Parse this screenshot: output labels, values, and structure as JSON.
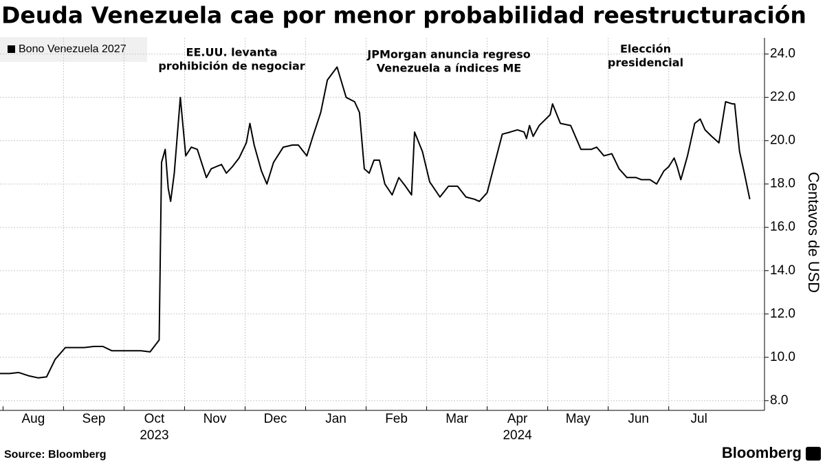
{
  "chart_data": {
    "type": "line",
    "title": "Deuda Venezuela cae por menor probabilidad reestructuración",
    "y_axis_label": "Centavos de USD",
    "source": "Source:  Bloomberg",
    "brand": "Bloomberg",
    "legend_position": "top-left",
    "grid": true,
    "years": [
      "2023",
      "2024"
    ],
    "annotations": [
      [
        "EE.UU. levanta",
        "prohibición de negociar"
      ],
      [
        "JPMorgan anuncia regreso",
        "Venezuela a índices ME"
      ],
      [
        "Elección",
        "presidencial"
      ]
    ],
    "xlim": [
      -0.05,
      12.56
    ],
    "xticks": [
      {
        "value": 0,
        "label": "Aug"
      },
      {
        "value": 1,
        "label": "Sep"
      },
      {
        "value": 2,
        "label": "Oct"
      },
      {
        "value": 3,
        "label": "Nov"
      },
      {
        "value": 4,
        "label": "Dec"
      },
      {
        "value": 5,
        "label": "Jan"
      },
      {
        "value": 6,
        "label": "Feb"
      },
      {
        "value": 7,
        "label": "Mar"
      },
      {
        "value": 8,
        "label": "Apr"
      },
      {
        "value": 9,
        "label": "May"
      },
      {
        "value": 10,
        "label": "Jun"
      },
      {
        "value": 11,
        "label": "Jul"
      }
    ],
    "ylim": [
      7.55,
      24.75
    ],
    "yticks": [
      {
        "value": 8,
        "label": "8.0"
      },
      {
        "value": 10,
        "label": "10.0"
      },
      {
        "value": 12,
        "label": "12.0"
      },
      {
        "value": 14,
        "label": "14.0"
      },
      {
        "value": 16,
        "label": "16.0"
      },
      {
        "value": 18,
        "label": "18.0"
      },
      {
        "value": 20,
        "label": "20.0"
      },
      {
        "value": 22,
        "label": "22.0"
      },
      {
        "value": 24,
        "label": "24.0"
      }
    ],
    "x": [
      -0.05,
      0.11,
      0.26,
      0.42,
      0.58,
      0.72,
      0.86,
      1.03,
      1.19,
      1.34,
      1.5,
      1.65,
      1.8,
      1.96,
      2.12,
      2.28,
      2.43,
      2.58,
      2.62,
      2.68,
      2.73,
      2.77,
      2.83,
      2.93,
      3.02,
      3.11,
      3.21,
      3.36,
      3.44,
      3.52,
      3.61,
      3.69,
      3.79,
      3.9,
      4.02,
      4.08,
      4.15,
      4.27,
      4.36,
      4.47,
      4.63,
      4.78,
      4.88,
      5.02,
      5.12,
      5.25,
      5.36,
      5.52,
      5.67,
      5.81,
      5.89,
      5.97,
      6.05,
      6.13,
      6.22,
      6.31,
      6.43,
      6.54,
      6.65,
      6.75,
      6.8,
      6.93,
      7.05,
      7.22,
      7.36,
      7.51,
      7.65,
      7.79,
      7.87,
      8.0,
      8.11,
      8.25,
      8.38,
      8.5,
      8.61,
      8.65,
      8.7,
      8.76,
      8.86,
      9.04,
      9.08,
      9.21,
      9.38,
      9.55,
      9.72,
      9.81,
      9.93,
      10.06,
      10.18,
      10.31,
      10.46,
      10.55,
      10.69,
      10.8,
      10.92,
      11.0,
      11.09,
      11.14,
      11.2,
      11.31,
      11.43,
      11.52,
      11.6,
      11.71,
      11.83,
      11.94,
      12.05,
      12.09,
      12.17,
      12.25,
      12.34
    ],
    "series": [
      {
        "name": "Bono Venezuela 2027",
        "color": "#000000",
        "values": [
          9.25,
          9.25,
          9.3,
          9.15,
          9.05,
          9.1,
          9.9,
          10.45,
          10.45,
          10.45,
          10.5,
          10.5,
          10.3,
          10.3,
          10.3,
          10.3,
          10.25,
          10.8,
          19.0,
          19.6,
          17.8,
          17.2,
          18.5,
          22.0,
          19.3,
          19.7,
          19.6,
          18.3,
          18.7,
          18.8,
          18.9,
          18.5,
          18.8,
          19.2,
          19.9,
          20.8,
          19.8,
          18.6,
          18.0,
          19.0,
          19.7,
          19.8,
          19.8,
          19.3,
          20.2,
          21.3,
          22.8,
          23.4,
          22.0,
          21.8,
          21.3,
          18.7,
          18.5,
          19.1,
          19.1,
          18.0,
          17.5,
          18.3,
          17.9,
          17.5,
          20.4,
          19.5,
          18.1,
          17.4,
          17.9,
          17.9,
          17.4,
          17.3,
          17.2,
          17.6,
          18.8,
          20.3,
          20.4,
          20.5,
          20.4,
          20.1,
          20.7,
          20.2,
          20.7,
          21.2,
          21.7,
          20.8,
          20.7,
          19.6,
          19.6,
          19.7,
          19.3,
          19.4,
          18.7,
          18.3,
          18.3,
          18.2,
          18.2,
          18.0,
          18.6,
          18.8,
          19.2,
          18.8,
          18.2,
          19.3,
          20.8,
          21.0,
          20.5,
          20.2,
          19.9,
          21.8,
          21.7,
          21.7,
          19.5,
          18.5,
          17.3
        ]
      }
    ]
  }
}
